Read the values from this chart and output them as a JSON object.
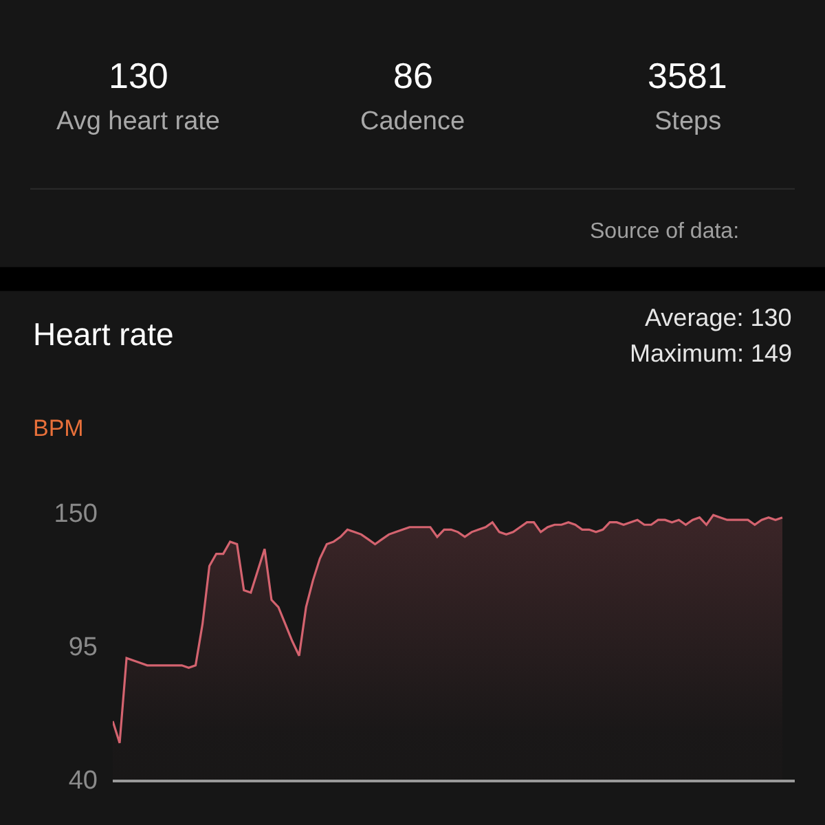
{
  "chart_data": [
    {
      "type": "other",
      "categories": [
        "Avg heart rate",
        "Cadence",
        "Steps"
      ],
      "values": [
        130,
        86,
        3581
      ],
      "data_labels": true,
      "annotations": [
        "Source of data:"
      ]
    },
    {
      "type": "area",
      "title": "Heart rate",
      "ylabel": "BPM",
      "annotations": [
        "Average: 130",
        "Maximum: 149"
      ],
      "categories": [
        null,
        null,
        null,
        null,
        null,
        null,
        null,
        null,
        null,
        null,
        null,
        null,
        null,
        null,
        null,
        null,
        null,
        null,
        null,
        null,
        null,
        null,
        null,
        null,
        null,
        null,
        null,
        null,
        null,
        null,
        null,
        null,
        null,
        null,
        null,
        null,
        null,
        null,
        null,
        null,
        null,
        null,
        null,
        null,
        null,
        null,
        null,
        null,
        null,
        null,
        null,
        null,
        null,
        null,
        null,
        null,
        null,
        null,
        null,
        null,
        null,
        null,
        null,
        null,
        null,
        null,
        null,
        null,
        null,
        null,
        null,
        null,
        null,
        null,
        null,
        null,
        null,
        null,
        null,
        null,
        null,
        null,
        null,
        null,
        null,
        null,
        null,
        null,
        null,
        null,
        null,
        null,
        null,
        null,
        null,
        null,
        null,
        null
      ],
      "series": [
        {
          "color": "#d4636f",
          "values": [
            64,
            55,
            90,
            89,
            88,
            87,
            87,
            87,
            87,
            87,
            87,
            86,
            87,
            104,
            128,
            133,
            133,
            138,
            137,
            118,
            117,
            126,
            135,
            114,
            111,
            104,
            97,
            91,
            111,
            122,
            131,
            137,
            138,
            140,
            143,
            142,
            141,
            139,
            137,
            139,
            141,
            142,
            143,
            144,
            144,
            144,
            144,
            140,
            143,
            143,
            142,
            140,
            142,
            143,
            144,
            146,
            142,
            141,
            142,
            144,
            146,
            146,
            142,
            144,
            145,
            145,
            146,
            145,
            143,
            143,
            142,
            143,
            146,
            146,
            145,
            146,
            147,
            145,
            145,
            147,
            147,
            146,
            147,
            145,
            147,
            148,
            145,
            149,
            148,
            147,
            147,
            147,
            147,
            145,
            147,
            148,
            147,
            148
          ]
        }
      ],
      "ylim": [
        40,
        150
      ],
      "yticks": [
        40,
        95,
        150
      ],
      "tick_labels": "y"
    }
  ]
}
